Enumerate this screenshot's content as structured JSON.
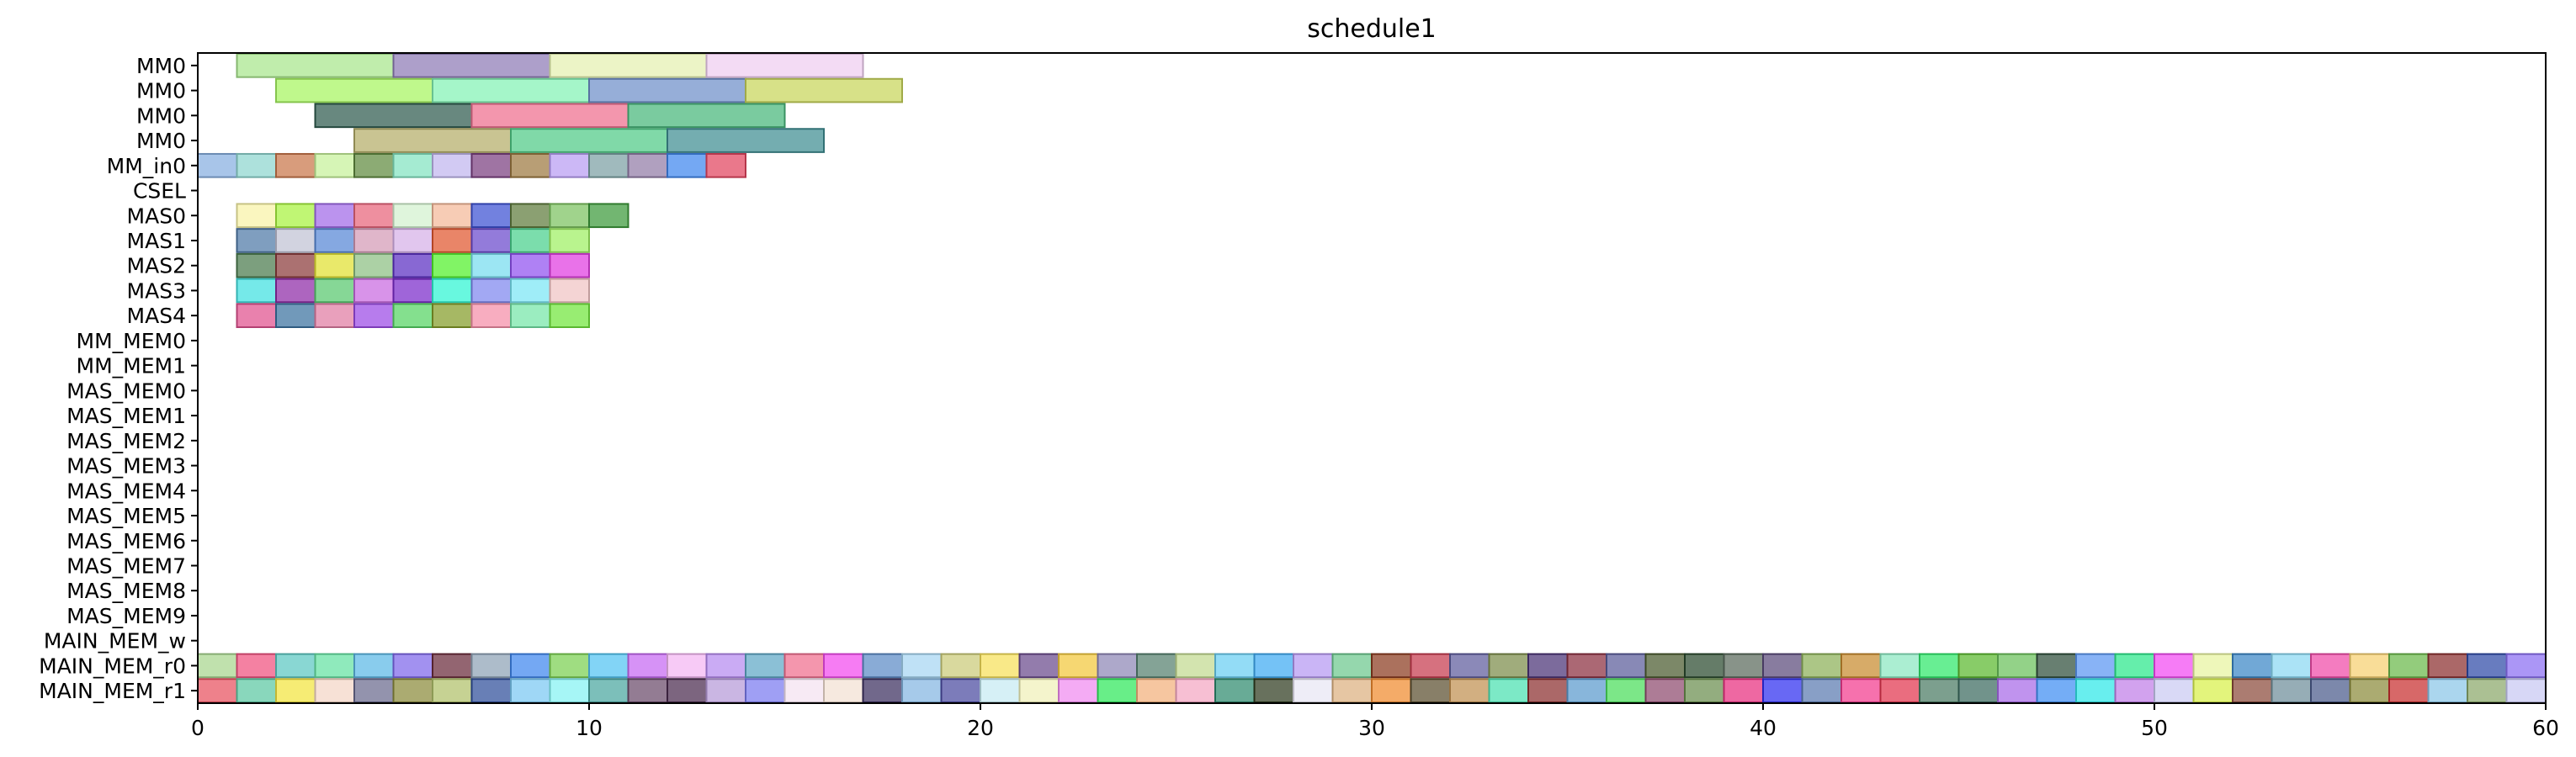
{
  "chart_data": {
    "type": "gantt",
    "title": "schedule1",
    "xlim": [
      0,
      60
    ],
    "x_ticks": [
      0,
      10,
      20,
      30,
      40,
      50,
      60
    ],
    "rows": [
      "MM0",
      "MM0",
      "MM0",
      "MM0",
      "MM_in0",
      "CSEL",
      "MAS0",
      "MAS1",
      "MAS2",
      "MAS3",
      "MAS4",
      "MM_MEM0",
      "MM_MEM1",
      "MAS_MEM0",
      "MAS_MEM1",
      "MAS_MEM2",
      "MAS_MEM3",
      "MAS_MEM4",
      "MAS_MEM5",
      "MAS_MEM6",
      "MAS_MEM7",
      "MAS_MEM8",
      "MAS_MEM9",
      "MAIN_MEM_w",
      "MAIN_MEM_r0",
      "MAIN_MEM_r1"
    ],
    "tasks": [
      {
        "row": 0,
        "start": 1,
        "end": 5,
        "color": "#a8e68c"
      },
      {
        "row": 0,
        "start": 5,
        "end": 9,
        "color": "#8e7ab5"
      },
      {
        "row": 0,
        "start": 9,
        "end": 13,
        "color": "#e5f0b0"
      },
      {
        "row": 0,
        "start": 13,
        "end": 17,
        "color": "#efcdf0"
      },
      {
        "row": 1,
        "start": 2,
        "end": 6,
        "color": "#a6f560"
      },
      {
        "row": 1,
        "start": 6,
        "end": 10,
        "color": "#82f2b4"
      },
      {
        "row": 1,
        "start": 10,
        "end": 14,
        "color": "#6e8fc9"
      },
      {
        "row": 1,
        "start": 14,
        "end": 18,
        "color": "#c8d55a"
      },
      {
        "row": 2,
        "start": 3,
        "end": 7,
        "color": "#2e5a4e"
      },
      {
        "row": 2,
        "start": 7,
        "end": 11,
        "color": "#ee6e8e"
      },
      {
        "row": 2,
        "start": 11,
        "end": 15,
        "color": "#47b77a"
      },
      {
        "row": 3,
        "start": 4,
        "end": 8,
        "color": "#b4ad68"
      },
      {
        "row": 3,
        "start": 8,
        "end": 12,
        "color": "#4fca86"
      },
      {
        "row": 3,
        "start": 12,
        "end": 16,
        "color": "#3f8d92"
      },
      {
        "row": 4,
        "start": 0,
        "end": 1,
        "color": "#86aee0"
      },
      {
        "row": 4,
        "start": 1,
        "end": 2,
        "color": "#8ed6cf"
      },
      {
        "row": 4,
        "start": 2,
        "end": 3,
        "color": "#c9764a"
      },
      {
        "row": 4,
        "start": 3,
        "end": 4,
        "color": "#c6f19a"
      },
      {
        "row": 4,
        "start": 4,
        "end": 5,
        "color": "#5f8a3f"
      },
      {
        "row": 4,
        "start": 5,
        "end": 6,
        "color": "#82e3c0"
      },
      {
        "row": 4,
        "start": 6,
        "end": 7,
        "color": "#c1b6ee"
      },
      {
        "row": 4,
        "start": 7,
        "end": 8,
        "color": "#7a3e80"
      },
      {
        "row": 4,
        "start": 8,
        "end": 9,
        "color": "#9c7840"
      },
      {
        "row": 4,
        "start": 9,
        "end": 10,
        "color": "#b89cf2"
      },
      {
        "row": 4,
        "start": 10,
        "end": 11,
        "color": "#7ba0a3"
      },
      {
        "row": 4,
        "start": 11,
        "end": 12,
        "color": "#917ca6"
      },
      {
        "row": 4,
        "start": 12,
        "end": 13,
        "color": "#3f86ee"
      },
      {
        "row": 4,
        "start": 13,
        "end": 14,
        "color": "#e2445e"
      },
      {
        "row": 6,
        "start": 1,
        "end": 2,
        "color": "#f8f3a6"
      },
      {
        "row": 6,
        "start": 2,
        "end": 3,
        "color": "#a7f23f"
      },
      {
        "row": 6,
        "start": 3,
        "end": 4,
        "color": "#a16ae8"
      },
      {
        "row": 6,
        "start": 4,
        "end": 5,
        "color": "#e7647a"
      },
      {
        "row": 6,
        "start": 5,
        "end": 6,
        "color": "#d2f1cf"
      },
      {
        "row": 6,
        "start": 6,
        "end": 7,
        "color": "#f4b898"
      },
      {
        "row": 6,
        "start": 7,
        "end": 8,
        "color": "#3c50d2"
      },
      {
        "row": 6,
        "start": 8,
        "end": 9,
        "color": "#5e7b3c"
      },
      {
        "row": 6,
        "start": 9,
        "end": 10,
        "color": "#7cc25f"
      },
      {
        "row": 6,
        "start": 10,
        "end": 11,
        "color": "#3c9a3a"
      },
      {
        "row": 7,
        "start": 1,
        "end": 2,
        "color": "#4e78a6"
      },
      {
        "row": 7,
        "start": 2,
        "end": 3,
        "color": "#c0c2d4"
      },
      {
        "row": 7,
        "start": 3,
        "end": 4,
        "color": "#5687d6"
      },
      {
        "row": 7,
        "start": 4,
        "end": 5,
        "color": "#d49ab6"
      },
      {
        "row": 7,
        "start": 5,
        "end": 6,
        "color": "#d6b0e8"
      },
      {
        "row": 7,
        "start": 6,
        "end": 7,
        "color": "#e1562e"
      },
      {
        "row": 7,
        "start": 7,
        "end": 8,
        "color": "#6a48cc"
      },
      {
        "row": 7,
        "start": 8,
        "end": 9,
        "color": "#48d08c"
      },
      {
        "row": 7,
        "start": 9,
        "end": 10,
        "color": "#9ef062"
      },
      {
        "row": 8,
        "start": 1,
        "end": 2,
        "color": "#4a7a4c"
      },
      {
        "row": 8,
        "start": 2,
        "end": 3,
        "color": "#8a3a3a"
      },
      {
        "row": 8,
        "start": 3,
        "end": 4,
        "color": "#e1e030"
      },
      {
        "row": 8,
        "start": 4,
        "end": 5,
        "color": "#8cbf82"
      },
      {
        "row": 8,
        "start": 5,
        "end": 6,
        "color": "#5a2ec2"
      },
      {
        "row": 8,
        "start": 6,
        "end": 7,
        "color": "#50f02a"
      },
      {
        "row": 8,
        "start": 7,
        "end": 8,
        "color": "#76dcee"
      },
      {
        "row": 8,
        "start": 8,
        "end": 9,
        "color": "#9050f0"
      },
      {
        "row": 8,
        "start": 9,
        "end": 10,
        "color": "#e03ce0"
      },
      {
        "row": 9,
        "start": 1,
        "end": 2,
        "color": "#40e0e0"
      },
      {
        "row": 9,
        "start": 2,
        "end": 3,
        "color": "#8e2aa6"
      },
      {
        "row": 9,
        "start": 3,
        "end": 4,
        "color": "#58c86e"
      },
      {
        "row": 9,
        "start": 4,
        "end": 5,
        "color": "#c96ae0"
      },
      {
        "row": 9,
        "start": 5,
        "end": 6,
        "color": "#7a2aca"
      },
      {
        "row": 9,
        "start": 6,
        "end": 7,
        "color": "#2ef5d2"
      },
      {
        "row": 9,
        "start": 7,
        "end": 8,
        "color": "#7e86ee"
      },
      {
        "row": 9,
        "start": 8,
        "end": 9,
        "color": "#7ae6f5"
      },
      {
        "row": 9,
        "start": 9,
        "end": 10,
        "color": "#f0c3c3"
      },
      {
        "row": 10,
        "start": 1,
        "end": 2,
        "color": "#e0508e"
      },
      {
        "row": 10,
        "start": 2,
        "end": 3,
        "color": "#3a72a0"
      },
      {
        "row": 10,
        "start": 3,
        "end": 4,
        "color": "#e07ca2"
      },
      {
        "row": 10,
        "start": 4,
        "end": 5,
        "color": "#9b4ae6"
      },
      {
        "row": 10,
        "start": 5,
        "end": 6,
        "color": "#54d463"
      },
      {
        "row": 10,
        "start": 6,
        "end": 7,
        "color": "#849c28"
      },
      {
        "row": 10,
        "start": 7,
        "end": 8,
        "color": "#f58ea8"
      },
      {
        "row": 10,
        "start": 8,
        "end": 9,
        "color": "#74e6a8"
      },
      {
        "row": 10,
        "start": 9,
        "end": 10,
        "color": "#70e63c"
      }
    ],
    "main_mem_r0_colors": [
      "#a8d68e",
      "#f0507e",
      "#5cc8c2",
      "#64e2a2",
      "#5cb8e6",
      "#7e66ea",
      "#6a2a3a",
      "#8ea2b6",
      "#3e86ee",
      "#7ad050",
      "#52c4f2",
      "#c668f2",
      "#f4b6f2",
      "#b68af0",
      "#5ea8c6",
      "#f06e8e",
      "#f24aee",
      "#5c8ac6",
      "#a6d6f2",
      "#cbcb78",
      "#f6e05a",
      "#6a4a8c",
      "#f2c83c",
      "#8e86b6",
      "#54806e",
      "#c2da90",
      "#6acef2",
      "#3eaaf2",
      "#b698f2",
      "#6cc88e",
      "#8a3a1e",
      "#c63a4e",
      "#5e5c9c",
      "#7c8c4a",
      "#4a3276",
      "#8a2e3e",
      "#5a5c9a",
      "#4a5a2e",
      "#2a4a2e",
      "#5a6a5c",
      "#5a4a7a",
      "#8cb058",
      "#c88a2e",
      "#8ae8c0",
      "#2ee86a",
      "#5ab82e",
      "#6ac05a",
      "#2e4e3a",
      "#5a96f2",
      "#2ae88a",
      "#f24af2",
      "#e8f4a0",
      "#3a86c6",
      "#8ad8f2",
      "#f04aa8",
      "#f6d070",
      "#6ab84a",
      "#8a2e2e",
      "#2e4aa6",
      "#8a6ef2"
    ],
    "main_mem_r1_colors": [
      "#e8505e",
      "#5cc8a2",
      "#f2e43e",
      "#f4d6c6",
      "#6a6a8e",
      "#8a8a3a",
      "#b0c06a",
      "#2e4e9a",
      "#7ac8f2",
      "#84f2f2",
      "#4aa6a0",
      "#6a4a6a",
      "#4a2a4e",
      "#b69ad8",
      "#7a7af0",
      "#f4e2f0",
      "#f2e0d2",
      "#3a2e5e",
      "#84b6e2",
      "#4a4aa0",
      "#c6eaf2",
      "#f0f0b8",
      "#f08af0",
      "#2ee85a",
      "#f2b07c",
      "#f4a6c2",
      "#2e8a6e",
      "#2e3a1e",
      "#e8e6f4",
      "#dcb080",
      "#f08a2e",
      "#5a4e2e",
      "#c09050",
      "#4ae0b0",
      "#8a2e2e",
      "#5a9acd",
      "#4ade5a",
      "#8e4a6e",
      "#6a8e4e",
      "#e82e7e",
      "#2e2ef0",
      "#5a7ab0",
      "#f23a8e",
      "#e2344e",
      "#4a7a62",
      "#3a6a5e",
      "#a86ae8",
      "#3e8ef2",
      "#2ee8e8",
      "#c07ee8",
      "#cacaf2",
      "#d8f04a",
      "#8a4a3a",
      "#6e8e9a",
      "#4a5a8a",
      "#8a8a3a",
      "#c82e2e",
      "#8ac6e8",
      "#8aa86a",
      "#c8c8f2"
    ]
  }
}
